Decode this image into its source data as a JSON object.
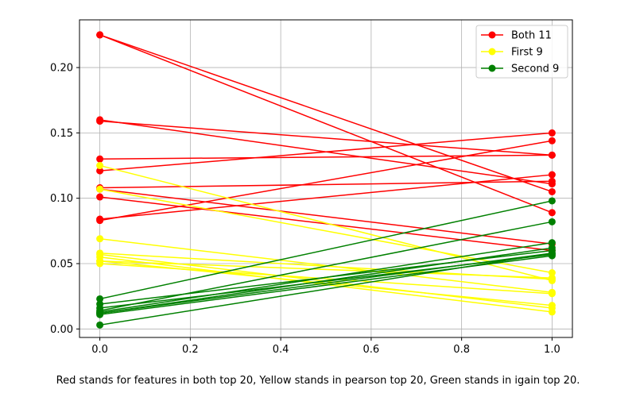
{
  "chart_data": {
    "type": "line",
    "title": "",
    "xlabel": "",
    "ylabel": "",
    "xlim": [
      -0.045,
      1.045
    ],
    "ylim": [
      -0.0065,
      0.2365
    ],
    "xticks": [
      0.0,
      0.2,
      0.4,
      0.6,
      0.8,
      1.0
    ],
    "xtick_labels": [
      "0.0",
      "0.2",
      "0.4",
      "0.6",
      "0.8",
      "1.0"
    ],
    "yticks": [
      0.0,
      0.05,
      0.1,
      0.15,
      0.2
    ],
    "ytick_labels": [
      "0.00",
      "0.05",
      "0.10",
      "0.15",
      "0.20"
    ],
    "grid": true,
    "legend_position": "top-right",
    "series": [
      {
        "name": "Both 11",
        "color": "#ff0000",
        "lines": [
          [
            0.225,
            0.105
          ],
          [
            0.225,
            0.089
          ],
          [
            0.159,
            0.133
          ],
          [
            0.16,
            0.111
          ],
          [
            0.13,
            0.133
          ],
          [
            0.121,
            0.15
          ],
          [
            0.108,
            0.113
          ],
          [
            0.107,
            0.065
          ],
          [
            0.101,
            0.06
          ],
          [
            0.084,
            0.118
          ],
          [
            0.083,
            0.144
          ]
        ]
      },
      {
        "name": "First 9",
        "color": "#ffff00",
        "lines": [
          [
            0.125,
            0.037
          ],
          [
            0.107,
            0.043
          ],
          [
            0.069,
            0.028
          ],
          [
            0.058,
            0.038
          ],
          [
            0.057,
            0.016
          ],
          [
            0.055,
            0.013
          ],
          [
            0.052,
            0.039
          ],
          [
            0.05,
            0.027
          ],
          [
            0.052,
            0.018
          ]
        ]
      },
      {
        "name": "Second 9",
        "color": "#008000",
        "lines": [
          [
            0.023,
            0.098
          ],
          [
            0.019,
            0.06
          ],
          [
            0.016,
            0.057
          ],
          [
            0.014,
            0.082
          ],
          [
            0.013,
            0.066
          ],
          [
            0.012,
            0.058
          ],
          [
            0.012,
            0.062
          ],
          [
            0.011,
            0.056
          ],
          [
            0.003,
            0.058
          ]
        ]
      }
    ]
  },
  "caption": "Red stands for features in both top 20, Yellow stands in pearson top 20, Green stands in igain top 20."
}
